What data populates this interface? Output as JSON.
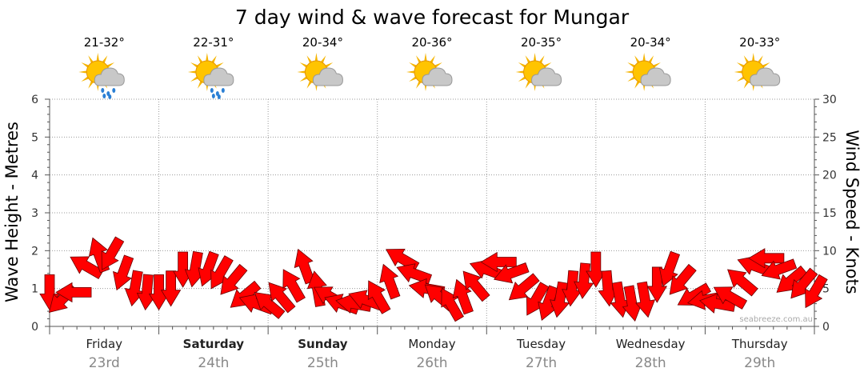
{
  "chart_data": {
    "type": "line",
    "title": "7 day wind & wave forecast for Mungar",
    "ylabel_left": "Wave Height - Metres",
    "ylabel_right": "Wind Speed - Knots",
    "ylim_left": [
      0,
      6
    ],
    "yticks_left": [
      "0",
      "1",
      "2",
      "3",
      "4",
      "5",
      "6"
    ],
    "ylim_right": [
      0,
      30
    ],
    "yticks_right": [
      "0",
      "5",
      "10",
      "15",
      "20",
      "25",
      "30"
    ],
    "grid": true,
    "watermark": "seabreeze.com.au",
    "days": [
      {
        "name": "Friday",
        "date": "23rd",
        "bold": false,
        "temp": "21-32°",
        "icon": "sun-cloud-rain-icon"
      },
      {
        "name": "Saturday",
        "date": "24th",
        "bold": true,
        "temp": "22-31°",
        "icon": "sun-cloud-rain-icon"
      },
      {
        "name": "Sunday",
        "date": "25th",
        "bold": true,
        "temp": "20-34°",
        "icon": "sun-cloud-icon"
      },
      {
        "name": "Monday",
        "date": "26th",
        "bold": false,
        "temp": "20-36°",
        "icon": "sun-cloud-icon"
      },
      {
        "name": "Tuesday",
        "date": "27th",
        "bold": false,
        "temp": "20-35°",
        "icon": "sun-cloud-icon"
      },
      {
        "name": "Wednesday",
        "date": "28th",
        "bold": false,
        "temp": "20-34°",
        "icon": "sun-cloud-icon"
      },
      {
        "name": "Thursday",
        "date": "29th",
        "bold": false,
        "temp": "20-33°",
        "icon": "sun-cloud-icon"
      }
    ],
    "wind_series": {
      "name": "Wind Speed - Knots",
      "color": "#ff0000",
      "x_days": [
        0.0,
        0.11,
        0.22,
        0.33,
        0.45,
        0.56,
        0.67,
        0.78,
        0.89,
        1.0,
        1.11,
        1.22,
        1.33,
        1.45,
        1.56,
        1.67,
        1.78,
        1.89,
        2.0,
        2.11,
        2.22,
        2.33,
        2.45,
        2.56,
        2.67,
        2.78,
        2.89,
        3.0,
        3.11,
        3.22,
        3.33,
        3.45,
        3.56,
        3.67,
        3.78,
        3.89,
        4.0,
        4.11,
        4.22,
        4.33,
        4.45,
        4.56,
        4.67,
        4.78,
        4.89,
        5.0,
        5.11,
        5.22,
        5.33,
        5.45,
        5.56,
        5.67,
        5.78,
        5.89,
        6.0,
        6.11,
        6.22,
        6.33,
        6.45,
        6.56,
        6.67,
        6.78,
        6.89,
        7.0
      ],
      "knots": [
        4.5,
        3.5,
        4.5,
        8,
        9.5,
        9.5,
        7,
        5,
        4.5,
        4.5,
        5,
        7.5,
        7.5,
        7.5,
        7,
        6,
        4,
        3,
        3,
        4,
        5.5,
        8,
        5,
        4,
        3,
        3,
        3.5,
        4,
        6,
        9,
        7,
        5,
        4,
        3,
        4,
        5.5,
        7.5,
        8.5,
        7,
        5,
        3.5,
        3,
        3.5,
        5,
        6,
        7.5,
        5,
        3.5,
        3,
        3.5,
        5.5,
        7.5,
        6,
        4,
        3.5,
        3,
        4,
        6,
        8,
        9,
        7.5,
        6,
        5.5,
        4.5
      ],
      "direction_deg": [
        90,
        135,
        180,
        210,
        250,
        120,
        110,
        100,
        95,
        90,
        90,
        90,
        100,
        110,
        120,
        130,
        140,
        200,
        220,
        230,
        240,
        250,
        260,
        210,
        200,
        190,
        200,
        240,
        250,
        210,
        200,
        190,
        220,
        240,
        250,
        230,
        200,
        180,
        160,
        140,
        120,
        110,
        100,
        95,
        95,
        90,
        85,
        80,
        80,
        80,
        90,
        110,
        130,
        150,
        170,
        190,
        210,
        220,
        200,
        180,
        160,
        140,
        130,
        120
      ]
    }
  }
}
